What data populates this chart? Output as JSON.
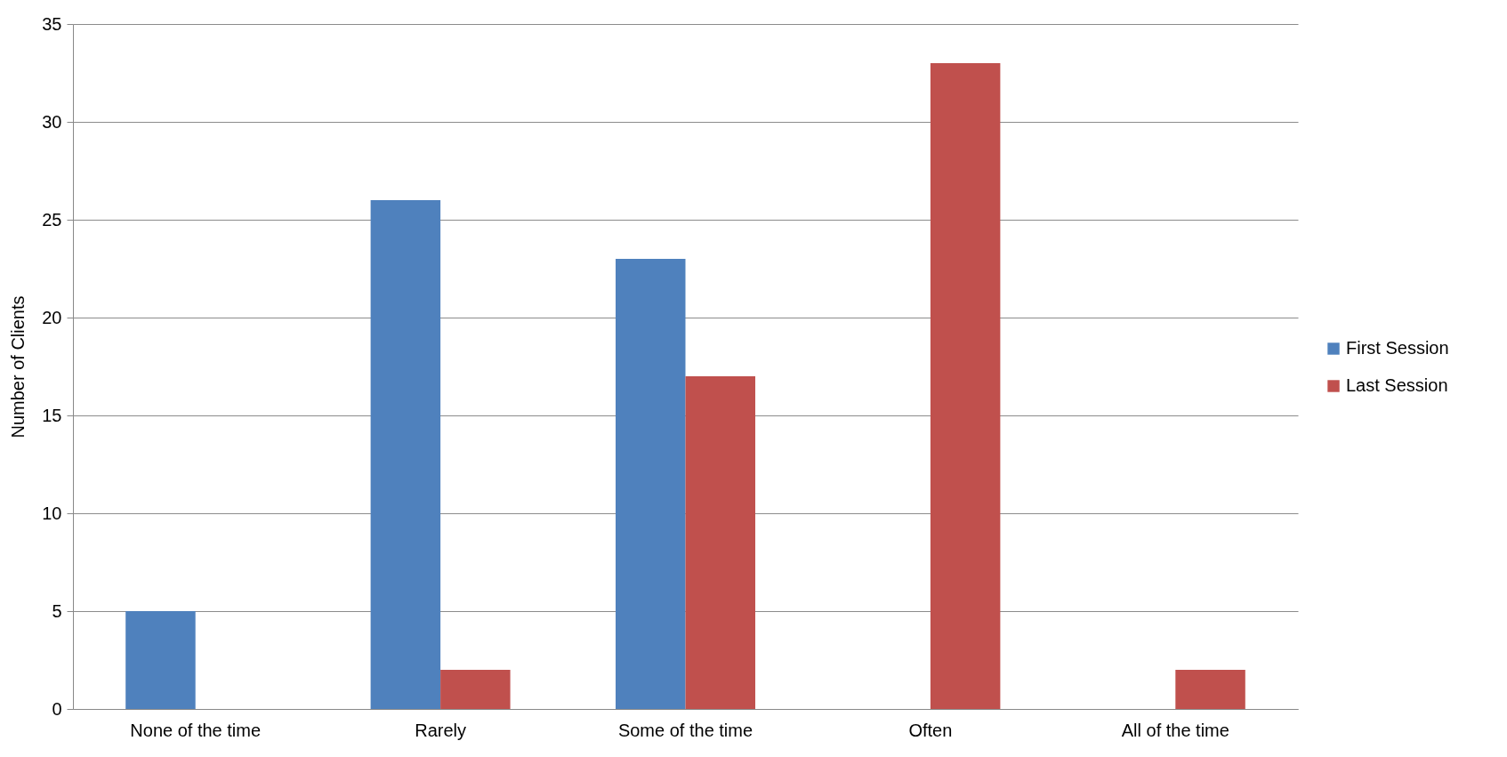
{
  "chart_data": {
    "type": "bar",
    "ylabel": "Number of Clients",
    "categories": [
      "None of the time",
      "Rarely",
      "Some of the time",
      "Often",
      "All of the time"
    ],
    "series": [
      {
        "name": "First Session",
        "color": "#4f81bd",
        "values": [
          5,
          26,
          23,
          0,
          0
        ]
      },
      {
        "name": "Last Session",
        "color": "#c0504d",
        "values": [
          0,
          2,
          17,
          33,
          2
        ]
      }
    ],
    "ylim": [
      0,
      35
    ],
    "yticks": [
      0,
      5,
      10,
      15,
      20,
      25,
      30,
      35
    ],
    "grid": "y",
    "legend": "right"
  }
}
